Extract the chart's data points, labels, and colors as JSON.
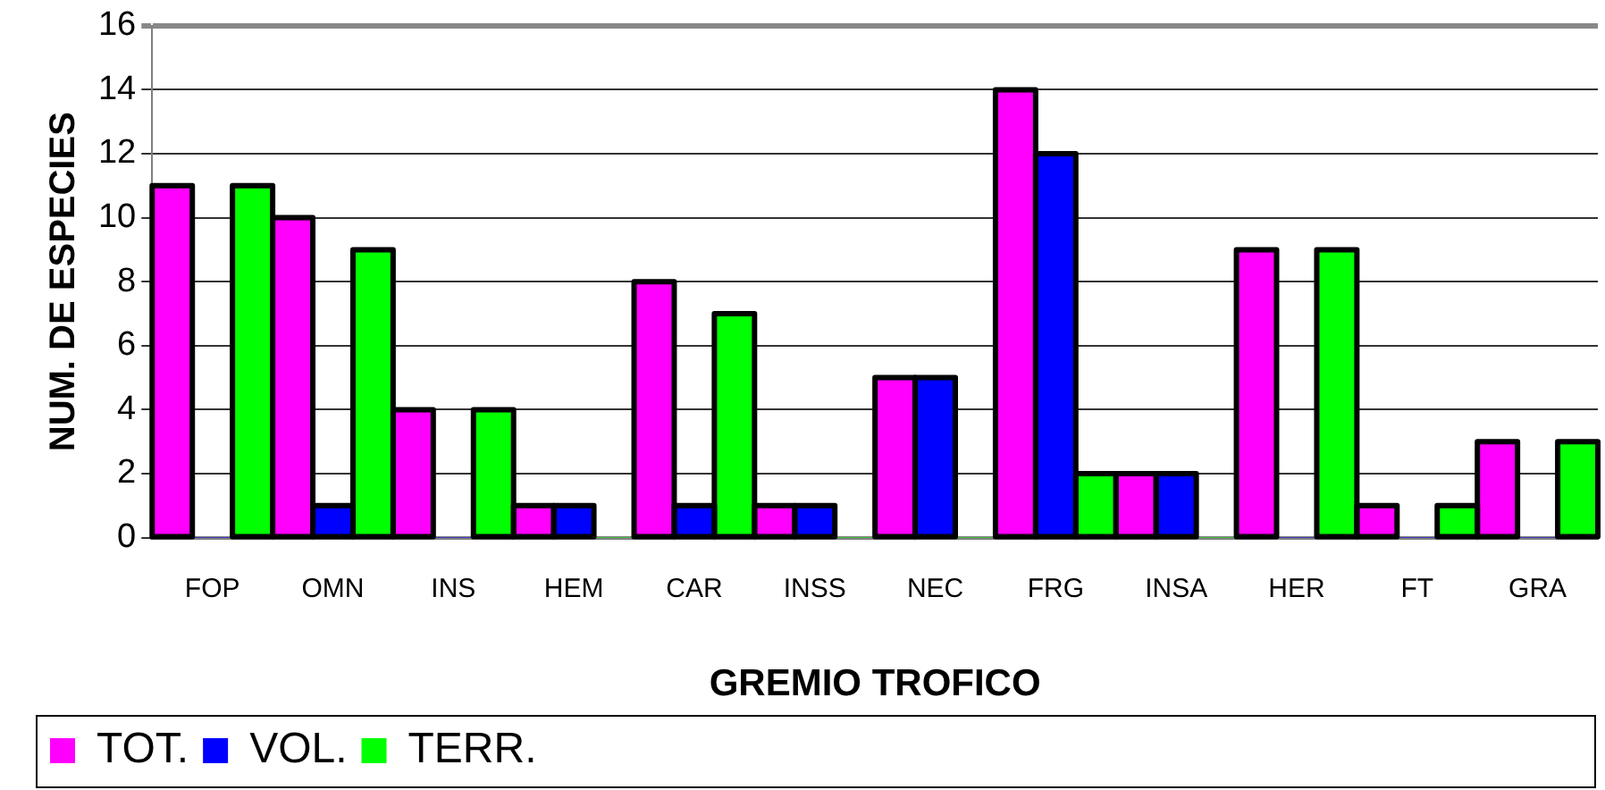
{
  "chart_data": {
    "type": "bar",
    "xlabel": "GREMIO TROFICO",
    "ylabel": "NUM. DE ESPECIES",
    "categories": [
      "FOP",
      "OMN",
      "INS",
      "HEM",
      "CAR",
      "INSS",
      "NEC",
      "FRG",
      "INSA",
      "HER",
      "FT",
      "GRA"
    ],
    "series": [
      {
        "name": "TOT.",
        "color": "#ff00ff",
        "values": [
          11,
          10,
          4,
          1,
          8,
          1,
          5,
          14,
          2,
          9,
          1,
          3
        ]
      },
      {
        "name": "VOL.",
        "color": "#0000ff",
        "values": [
          0,
          1,
          0,
          1,
          1,
          1,
          5,
          12,
          2,
          0,
          0,
          0
        ]
      },
      {
        "name": "TERR.",
        "color": "#00ff00",
        "values": [
          11,
          9,
          4,
          0,
          7,
          0,
          0,
          2,
          0,
          9,
          1,
          3
        ]
      }
    ],
    "ylim": [
      0,
      16
    ],
    "yticks": [
      0,
      2,
      4,
      6,
      8,
      10,
      12,
      14,
      16
    ],
    "grid": "y",
    "legend": "bottom left"
  }
}
